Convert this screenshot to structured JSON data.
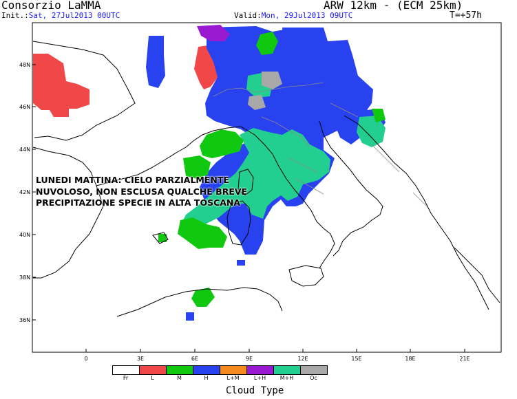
{
  "header": {
    "title": "Consorzio LaMMA",
    "model": "ARW 12km - (ECM 25km)",
    "init_label": "Init.:",
    "init_value": "Sat, 27Jul2013 00UTC",
    "valid_label": "Valid:",
    "valid_value": "Mon, 29Jul2013 09UTC",
    "lead_time": "T=+57h"
  },
  "forecast_text": "LUNEDI MATTINA: CIELO PARZIALMENTE NUVOLOSO, NON ESCLUSA QUALCHE BREVE PRECIPITAZIONE SPECIE IN ALTA TOSCANA",
  "axes": {
    "lat_labels": [
      "48N",
      "46N",
      "44N",
      "42N",
      "40N",
      "38N",
      "36N"
    ],
    "lon_labels": [
      "0",
      "3E",
      "6E",
      "9E",
      "12E",
      "15E",
      "18E",
      "21E"
    ]
  },
  "legend": {
    "title": "Cloud Type",
    "items": [
      {
        "label": "Fr",
        "color": "#ffffff"
      },
      {
        "label": "L",
        "color": "#f04848"
      },
      {
        "label": "M",
        "color": "#10c810"
      },
      {
        "label": "H",
        "color": "#2842f0"
      },
      {
        "label": "L+M",
        "color": "#f58a1e"
      },
      {
        "label": "L+H",
        "color": "#9a1ad2"
      },
      {
        "label": "M+H",
        "color": "#22cf90"
      },
      {
        "label": "Oc",
        "color": "#a8a8a8"
      }
    ]
  }
}
